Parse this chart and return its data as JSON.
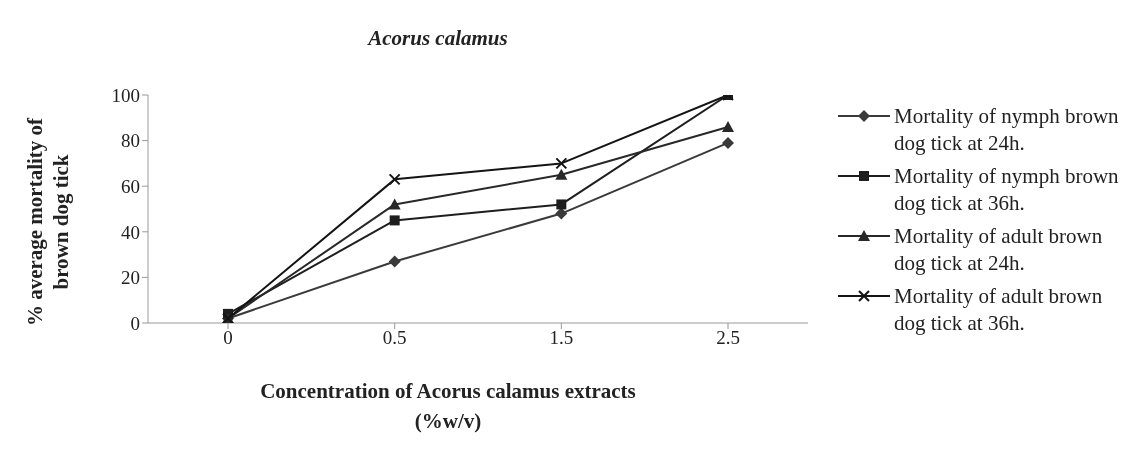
{
  "chart_data": {
    "type": "line",
    "title": "Acorus  calamus",
    "xlabel": "Concentration of Acorus calamus extracts (%w/v)",
    "ylabel": "% average mortality of brown dog tick",
    "categories": [
      "0",
      "0.5",
      "1.5",
      "2.5"
    ],
    "series": [
      {
        "name": "Mortality of nymph brown dog tick at 24h.",
        "color": "#3a3a3a",
        "marker": "diamond",
        "values": [
          2,
          27,
          48,
          79
        ]
      },
      {
        "name": "Mortality of nymph brown dog tick at 36h.",
        "color": "#1e1e1e",
        "marker": "square",
        "values": [
          4,
          45,
          52,
          100
        ]
      },
      {
        "name": "Mortality of adult brown dog tick at 24h.",
        "color": "#282828",
        "marker": "triangle",
        "values": [
          2,
          52,
          65,
          86
        ]
      },
      {
        "name": "Mortality of adult brown dog tick at 36h.",
        "color": "#141414",
        "marker": "cross",
        "values": [
          2,
          63,
          70,
          100
        ]
      }
    ],
    "ylim": [
      0,
      100
    ],
    "yticks": [
      0,
      20,
      40,
      60,
      80,
      100
    ],
    "grid": false,
    "legend": "right",
    "line_style": "solid"
  }
}
